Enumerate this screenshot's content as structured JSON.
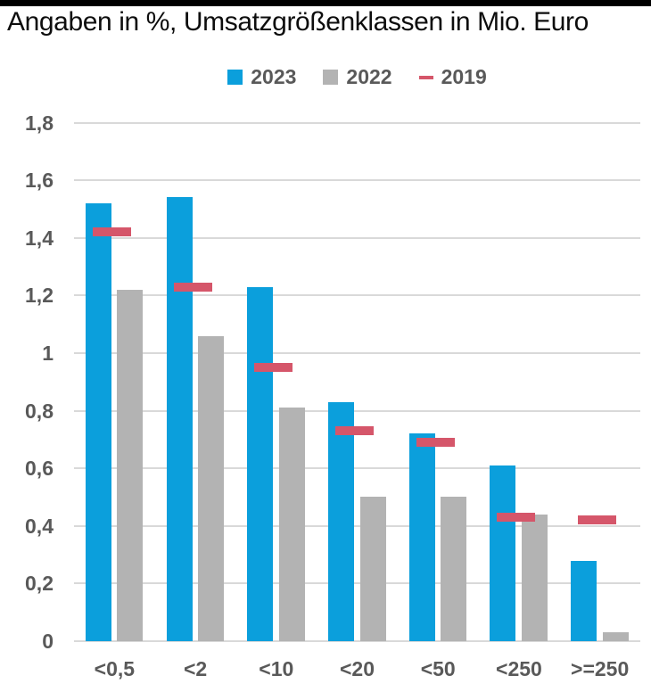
{
  "page": {
    "title": "Angaben in %, Umsatzgrößenklassen in Mio. Euro"
  },
  "legend": {
    "items": [
      {
        "label": "2023",
        "color": "#0b9fdc",
        "shape": "square"
      },
      {
        "label": "2022",
        "color": "#b3b3b3",
        "shape": "square"
      },
      {
        "label": "2019",
        "color": "#d5566a",
        "shape": "dash"
      }
    ]
  },
  "chart_data": {
    "type": "bar",
    "title": "Angaben in %, Umsatzgrößenklassen in Mio. Euro",
    "categories": [
      "<0,5",
      "<2",
      "<10",
      "<20",
      "<50",
      "<250",
      ">=250"
    ],
    "series": [
      {
        "name": "2023",
        "type": "bar",
        "color": "#0b9fdc",
        "values": [
          1.52,
          1.54,
          1.23,
          0.83,
          0.72,
          0.61,
          0.28
        ]
      },
      {
        "name": "2022",
        "type": "bar",
        "color": "#b3b3b3",
        "values": [
          1.22,
          1.06,
          0.81,
          0.5,
          0.5,
          0.44,
          0.03
        ]
      },
      {
        "name": "2019",
        "type": "dash",
        "color": "#d5566a",
        "values": [
          1.42,
          1.23,
          0.95,
          0.73,
          0.69,
          0.43,
          0.42
        ]
      }
    ],
    "xlabel": "",
    "ylabel": "",
    "ylim": [
      0,
      1.8
    ],
    "ytick_values": [
      0,
      0.2,
      0.4,
      0.6,
      0.8,
      1,
      1.2,
      1.4,
      1.6,
      1.8
    ],
    "ytick_labels": [
      "0",
      "0,2",
      "0,4",
      "0,6",
      "0,8",
      "1",
      "1,2",
      "1,4",
      "1,6",
      "1,8"
    ],
    "grid": true,
    "legend_position": "top"
  },
  "colors": {
    "grid": "#d9d9d9",
    "axis_text": "#595959",
    "title_text": "#0d0d0d",
    "top_bar": "#000000",
    "background": "#ffffff"
  }
}
